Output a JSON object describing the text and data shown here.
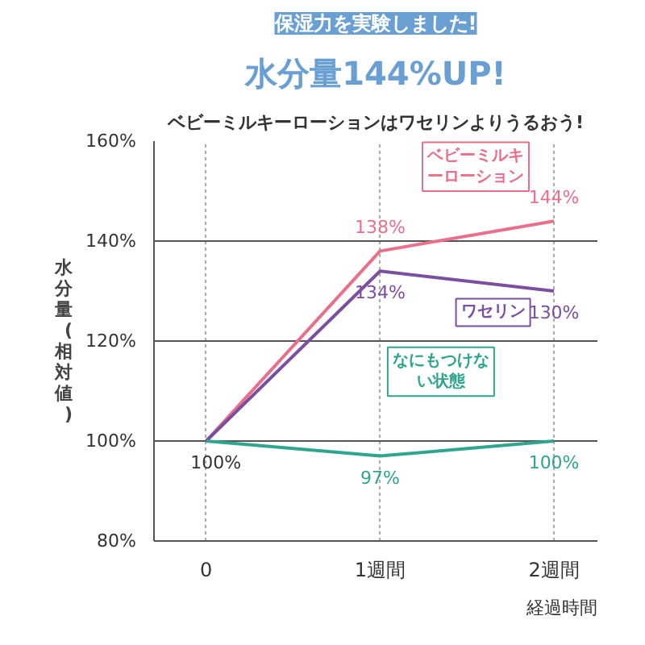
{
  "chart_data": {
    "type": "line",
    "title": "水分量144%UP!",
    "subtitle": "ベビーミルキーローションはワセリンよりうるおう!",
    "annotations": [
      "保湿力を実験しました!"
    ],
    "xlabel": "経過時間",
    "ylabel": "水分量(相対値)",
    "categories": [
      "0",
      "1週間",
      "2週間"
    ],
    "ylim": [
      80,
      160
    ],
    "yticks": [
      {
        "value": 80,
        "label": "80%"
      },
      {
        "value": 100,
        "label": "100%"
      },
      {
        "value": 120,
        "label": "120%"
      },
      {
        "value": 140,
        "label": "140%"
      },
      {
        "value": 160,
        "label": "160%"
      }
    ],
    "grid": true,
    "marker": "none",
    "series": [
      {
        "name": "ベビーミルキーローション",
        "color": "#e8708a",
        "values": [
          100,
          138,
          144
        ],
        "value_labels": [
          null,
          "138%",
          "144%"
        ]
      },
      {
        "name": "ワセリン",
        "color": "#7a4fa0",
        "values": [
          100,
          134,
          130
        ],
        "value_labels": [
          null,
          "134%",
          "130%"
        ]
      },
      {
        "name": "なにもつけない状態",
        "color": "#2fa58f",
        "values": [
          100,
          97,
          100
        ],
        "value_labels": [
          "100%",
          "97%",
          "100%"
        ]
      }
    ]
  }
}
